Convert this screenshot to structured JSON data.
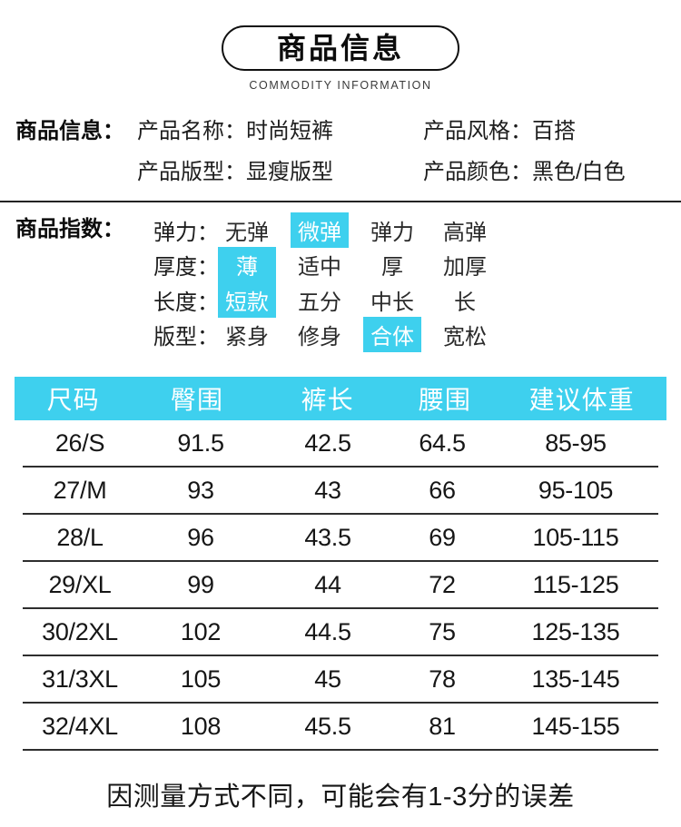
{
  "header": {
    "title": "商品信息",
    "subtitle": "COMMODITY INFORMATION"
  },
  "product_info": {
    "section_label": "商品信息：",
    "fields": [
      {
        "label": "产品名称：",
        "value": "时尚短裤"
      },
      {
        "label": "产品风格：",
        "value": "百搭"
      },
      {
        "label": "产品版型：",
        "value": "显瘦版型"
      },
      {
        "label": "产品颜色：",
        "value": "黑色/白色"
      }
    ]
  },
  "product_index": {
    "section_label": "商品指数：",
    "rows": [
      {
        "label": "弹力：",
        "options": [
          "无弹",
          "微弹",
          "弹力",
          "高弹"
        ],
        "selected": 1
      },
      {
        "label": "厚度：",
        "options": [
          "薄",
          "适中",
          "厚",
          "加厚"
        ],
        "selected": 0
      },
      {
        "label": "长度：",
        "options": [
          "短款",
          "五分",
          "中长",
          "长"
        ],
        "selected": 0
      },
      {
        "label": "版型：",
        "options": [
          "紧身",
          "修身",
          "合体",
          "宽松"
        ],
        "selected": 2
      }
    ]
  },
  "size_table": {
    "headers": [
      "尺码",
      "臀围",
      "裤长",
      "腰围",
      "建议体重"
    ],
    "rows": [
      [
        "26/S",
        "91.5",
        "42.5",
        "64.5",
        "85-95"
      ],
      [
        "27/M",
        "93",
        "43",
        "66",
        "95-105"
      ],
      [
        "28/L",
        "96",
        "43.5",
        "69",
        "105-115"
      ],
      [
        "29/XL",
        "99",
        "44",
        "72",
        "115-125"
      ],
      [
        "30/2XL",
        "102",
        "44.5",
        "75",
        "125-135"
      ],
      [
        "31/3XL",
        "105",
        "45",
        "78",
        "135-145"
      ],
      [
        "32/4XL",
        "108",
        "45.5",
        "81",
        "145-155"
      ]
    ]
  },
  "footer": {
    "note": "因测量方式不同，可能会有1-3分的误差"
  },
  "colors": {
    "accent_cyan": "#3ed0ee"
  }
}
